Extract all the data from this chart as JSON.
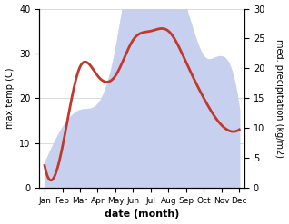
{
  "months": [
    "Jan",
    "Feb",
    "Mar",
    "Apr",
    "May",
    "Jun",
    "Jul",
    "Aug",
    "Sep",
    "Oct",
    "Nov",
    "Dec"
  ],
  "temp": [
    5,
    9,
    27,
    25,
    25,
    33,
    35,
    35,
    28,
    20,
    14,
    13
  ],
  "precip": [
    4,
    10,
    13,
    14,
    23,
    37,
    32,
    35,
    30,
    22,
    22,
    13
  ],
  "temp_color": "#c0392b",
  "precip_fill_color": "#c8d0f0",
  "precip_edge_color": "#c8d0f0",
  "temp_ylim": [
    0,
    40
  ],
  "precip_ylim": [
    0,
    30
  ],
  "xlabel": "date (month)",
  "ylabel_left": "max temp (C)",
  "ylabel_right": "med. precipitation (kg/m2)",
  "bg_color": "#ffffff",
  "grid_color": "#cccccc"
}
